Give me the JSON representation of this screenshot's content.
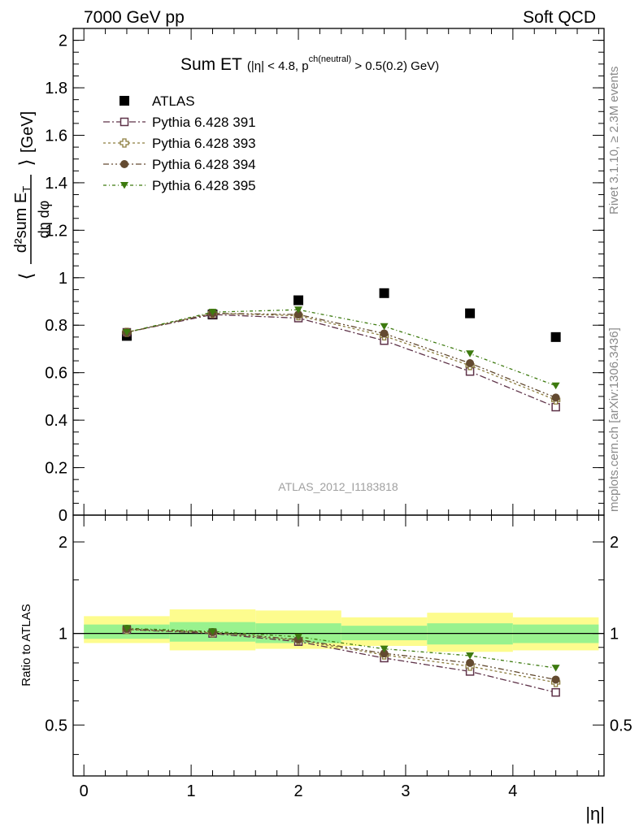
{
  "header": {
    "left": "7000 GeV pp",
    "right": "Soft QCD"
  },
  "side_text": {
    "rivet": "Rivet 3.1.10, ≥ 2.3M events",
    "site": "mcplots.cern.ch [arXiv:1306.3436]"
  },
  "watermark": "ATLAS_2012_I1183818",
  "chart_data": [
    {
      "type": "scatter",
      "panel": "main",
      "title": "Sum ET",
      "title_cut_pre": "(|η| < 4.8, p",
      "title_cut_sup": "ch(neutral)",
      "title_cut_post": " > 0.5(0.2) GeV)",
      "ylabel": "⟨ d²sum E_T / dη dφ ⟩ [GeV]",
      "ylabel_units": "[GeV]",
      "xlabel": "|η|",
      "xlim": [
        -0.1,
        4.85
      ],
      "ylim": [
        0,
        2.05
      ],
      "yticks": [
        0,
        0.2,
        0.4,
        0.6,
        0.8,
        1,
        1.2,
        1.4,
        1.6,
        1.8,
        2
      ],
      "ytick_labels": [
        "0",
        "0.2",
        "0.4",
        "0.6",
        "0.8",
        "1",
        "1.2",
        "1.4",
        "1.6",
        "1.8",
        "2"
      ],
      "x": [
        0.4,
        1.2,
        2.0,
        2.8,
        3.6,
        4.4
      ],
      "legend_position": "top-left",
      "series": [
        {
          "name": "ATLAS",
          "marker": "filled-square",
          "color": "#000000",
          "values": [
            0.755,
            0.845,
            0.905,
            0.935,
            0.85,
            0.75
          ]
        },
        {
          "name": "Pythia 6.428 391",
          "marker": "open-square",
          "color": "#5e3248",
          "values": [
            0.77,
            0.845,
            0.83,
            0.735,
            0.605,
            0.455
          ]
        },
        {
          "name": "Pythia 6.428 393",
          "marker": "open-cross",
          "color": "#8c7d3e",
          "values": [
            0.77,
            0.85,
            0.84,
            0.755,
            0.63,
            0.485
          ]
        },
        {
          "name": "Pythia 6.428 394",
          "marker": "filled-circle",
          "color": "#634a30",
          "values": [
            0.77,
            0.85,
            0.845,
            0.765,
            0.64,
            0.495
          ]
        },
        {
          "name": "Pythia 6.428 395",
          "marker": "filled-triangle-down",
          "color": "#3d7a0f",
          "values": [
            0.77,
            0.855,
            0.865,
            0.795,
            0.68,
            0.545
          ]
        }
      ]
    },
    {
      "type": "scatter",
      "panel": "ratio",
      "ylabel": "Ratio to ATLAS",
      "xlabel": "|η|",
      "xlim": [
        -0.1,
        4.85
      ],
      "ylim": [
        0.34,
        2.45
      ],
      "yticks": [
        0.5,
        1,
        2
      ],
      "ytick_labels": [
        "0.5",
        "1",
        "2"
      ],
      "xticks": [
        0,
        1,
        2,
        3,
        4
      ],
      "xtick_labels": [
        "0",
        "1",
        "2",
        "3",
        "4"
      ],
      "x": [
        0.4,
        1.2,
        2.0,
        2.8,
        3.6,
        4.4
      ],
      "bands": {
        "edges": [
          0.0,
          0.8,
          1.6,
          2.4,
          3.2,
          4.0,
          4.8
        ],
        "inner": [
          [
            0.96,
            1.07
          ],
          [
            0.94,
            1.09
          ],
          [
            0.93,
            1.08
          ],
          [
            0.95,
            1.06
          ],
          [
            0.92,
            1.08
          ],
          [
            0.93,
            1.07
          ]
        ],
        "outer": [
          [
            0.93,
            1.14
          ],
          [
            0.88,
            1.2
          ],
          [
            0.89,
            1.19
          ],
          [
            0.91,
            1.13
          ],
          [
            0.87,
            1.17
          ],
          [
            0.88,
            1.13
          ]
        ],
        "inner_color": "#99f28e",
        "outer_color": "#fdfc8e"
      },
      "series": [
        {
          "name": "Pythia 6.428 391",
          "marker": "open-square",
          "color": "#5e3248",
          "values": [
            1.03,
            1.0,
            0.94,
            0.83,
            0.75,
            0.64
          ]
        },
        {
          "name": "Pythia 6.428 393",
          "marker": "open-cross",
          "color": "#8c7d3e",
          "values": [
            1.03,
            1.005,
            0.95,
            0.85,
            0.78,
            0.69
          ]
        },
        {
          "name": "Pythia 6.428 394",
          "marker": "filled-circle",
          "color": "#634a30",
          "values": [
            1.035,
            1.01,
            0.955,
            0.86,
            0.8,
            0.705
          ]
        },
        {
          "name": "Pythia 6.428 395",
          "marker": "filled-triangle-down",
          "color": "#3d7a0f",
          "values": [
            1.04,
            1.015,
            0.975,
            0.89,
            0.845,
            0.77
          ]
        }
      ]
    }
  ]
}
